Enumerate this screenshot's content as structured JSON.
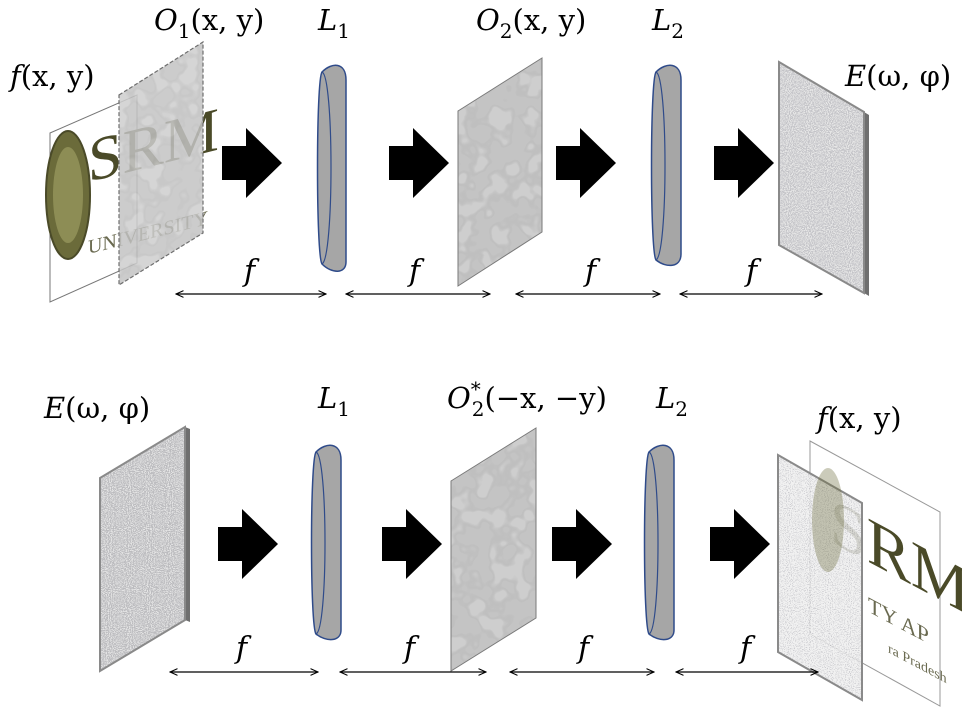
{
  "top_row": {
    "input": {
      "main": "f",
      "args": "(x, y)"
    },
    "mask1": {
      "main": "O",
      "sub": "1",
      "args": "(x, y)"
    },
    "lens1": {
      "main": "L",
      "sub": "1"
    },
    "mask2": {
      "main": "O",
      "sub": "2",
      "args": "(x, y)"
    },
    "lens2": {
      "main": "L",
      "sub": "2"
    },
    "output": {
      "main": "E",
      "args": "(ω, φ)"
    }
  },
  "bottom_row": {
    "input": {
      "main": "E",
      "args": "(ω, φ)"
    },
    "lens1": {
      "main": "L",
      "sub": "1"
    },
    "mask": {
      "main": "O",
      "sup": "*",
      "sub": "2",
      "args": "(−x, −y)"
    },
    "lens2": {
      "main": "L",
      "sub": "2"
    },
    "output": {
      "main": "f",
      "args": "(x, y)"
    }
  },
  "focal_label": "f",
  "logo": {
    "big": "SRM",
    "line1": "UNIVERSITY",
    "line2": "TY AP",
    "line3": "ra Pradesh"
  },
  "colors": {
    "lens_fill": "#a6a6a6",
    "lens_edge": "#2f4b8a",
    "arrow": "#000000",
    "mask_base": "#b0b0b0",
    "logo_green": "#4a4a28"
  }
}
